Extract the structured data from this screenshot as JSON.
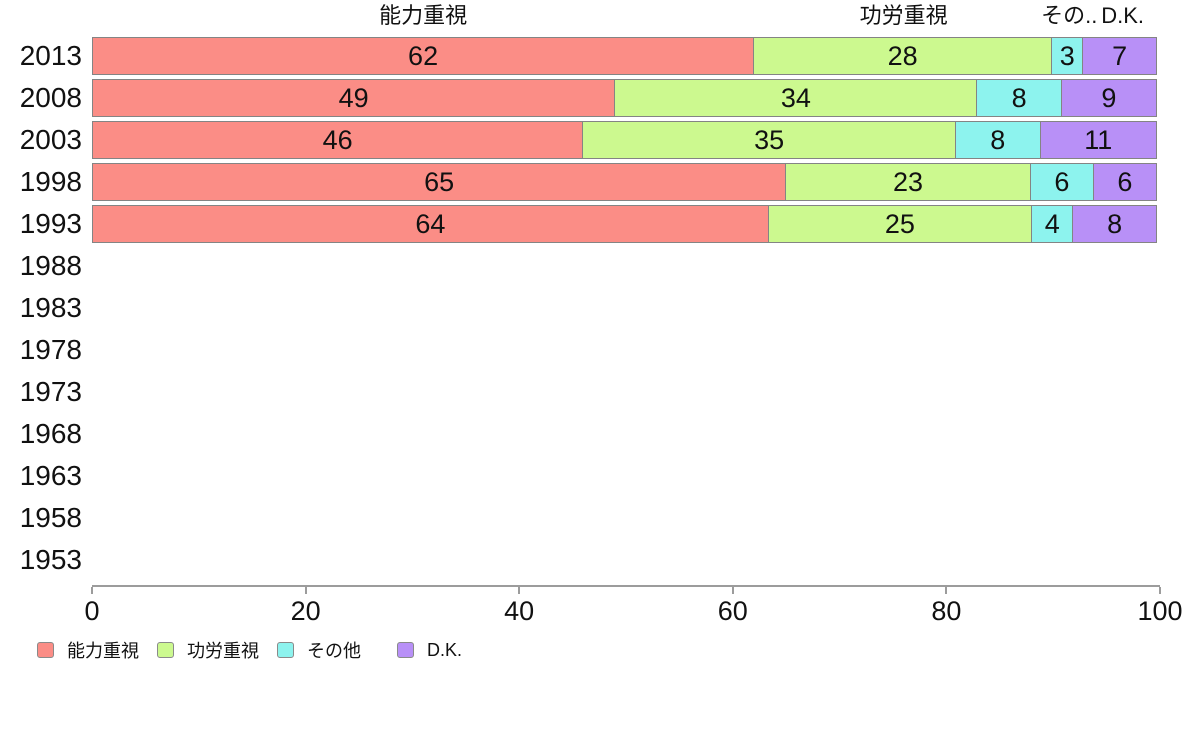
{
  "chart_data": {
    "type": "bar",
    "orientation": "horizontal",
    "stacked": true,
    "title": "",
    "xlabel": "",
    "ylabel": "",
    "xlim": [
      0,
      100
    ],
    "x_ticks": [
      0,
      20,
      40,
      60,
      80,
      100
    ],
    "grid": false,
    "legend_position": "bottom",
    "categories": [
      "2013",
      "2008",
      "2003",
      "1998",
      "1993",
      "1988",
      "1983",
      "1978",
      "1973",
      "1968",
      "1963",
      "1958",
      "1953"
    ],
    "series": [
      {
        "name": "能力重視",
        "color": "#FB8D86",
        "values": [
          62,
          49,
          46,
          65,
          64,
          null,
          null,
          null,
          null,
          null,
          null,
          null,
          null
        ]
      },
      {
        "name": "功労重視",
        "color": "#CCF98F",
        "values": [
          28,
          34,
          35,
          23,
          25,
          null,
          null,
          null,
          null,
          null,
          null,
          null,
          null
        ]
      },
      {
        "name": "その他",
        "color": "#8DF3EE",
        "values": [
          3,
          8,
          8,
          6,
          4,
          null,
          null,
          null,
          null,
          null,
          null,
          null,
          null
        ]
      },
      {
        "name": "D.K.",
        "color": "#B890F7",
        "values": [
          7,
          9,
          11,
          6,
          8,
          null,
          null,
          null,
          null,
          null,
          null,
          null,
          null
        ]
      }
    ],
    "column_headers": [
      "能力重視",
      "功労重視",
      "その..",
      "D.K."
    ],
    "legend_labels": [
      "能力重視",
      "功労重視",
      "その他",
      "D.K."
    ]
  }
}
